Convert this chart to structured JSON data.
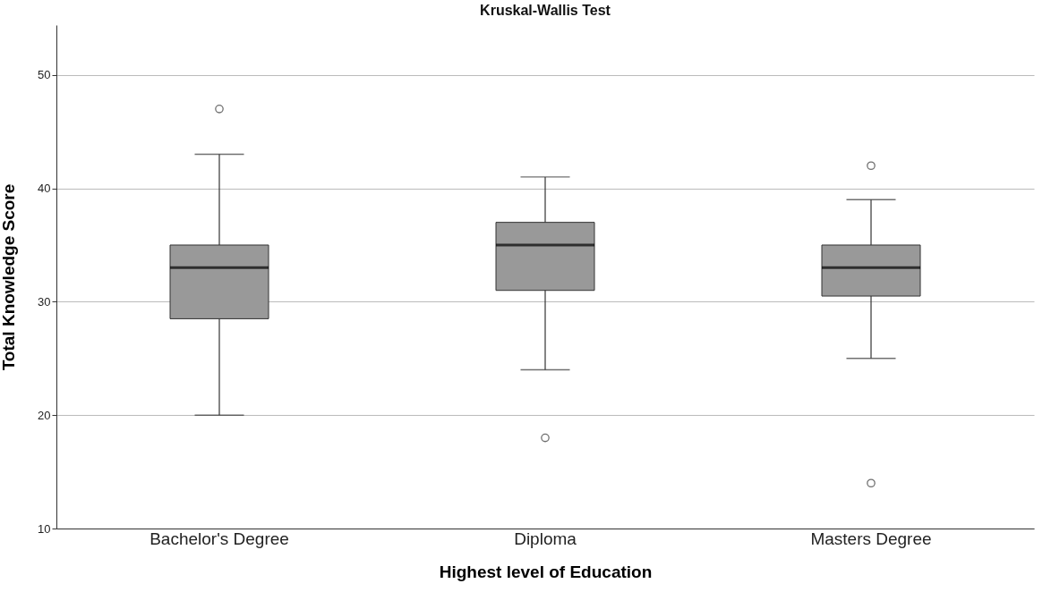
{
  "chart_data": {
    "type": "box",
    "title": "Kruskal-Wallis Test",
    "xlabel": "Highest level of Education",
    "ylabel": "Total Knowledge Score",
    "categories": [
      "Bachelor's Degree",
      "Diploma",
      "Masters Degree"
    ],
    "boxes": [
      {
        "low": 20,
        "q1": 28.5,
        "median": 33,
        "q3": 35,
        "high": 43,
        "outliers": [
          47
        ]
      },
      {
        "low": 24,
        "q1": 31,
        "median": 35,
        "q3": 37,
        "high": 41,
        "outliers": [
          18
        ]
      },
      {
        "low": 25,
        "q1": 30.5,
        "median": 33,
        "q3": 35,
        "high": 39,
        "outliers": [
          42,
          14
        ]
      }
    ],
    "color": "#999999",
    "ylim": [
      10,
      54.4
    ],
    "yticks": [
      10,
      20,
      30,
      40,
      50
    ],
    "grid": "y",
    "marker": "circle"
  }
}
